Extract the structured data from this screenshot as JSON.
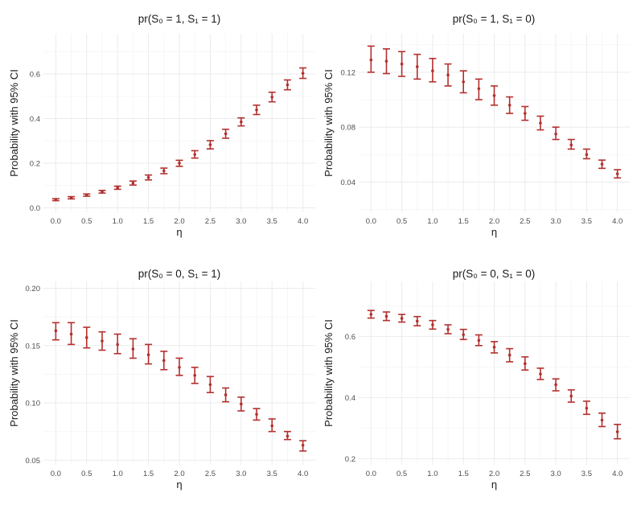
{
  "chart_data": [
    {
      "type": "scatter",
      "title": "pr(S₀ = 1, S₁ = 1)",
      "xlabel": "η",
      "ylabel": "Probability with 95% CI",
      "xlim": [
        -0.2,
        4.2
      ],
      "ylim": [
        -0.02,
        0.78
      ],
      "xticks": [
        0.0,
        0.5,
        1.0,
        1.5,
        2.0,
        2.5,
        3.0,
        3.5,
        4.0
      ],
      "xtick_labels": [
        "0.0",
        "0.5",
        "1.0",
        "1.5",
        "2.0",
        "2.5",
        "3.0",
        "3.5",
        "4.0"
      ],
      "yticks": [
        0.0,
        0.2,
        0.4,
        0.6
      ],
      "ytick_labels": [
        "0.0",
        "0.2",
        "0.4",
        "0.6"
      ],
      "x": [
        0.0,
        0.25,
        0.5,
        0.75,
        1.0,
        1.25,
        1.5,
        1.75,
        2.0,
        2.25,
        2.5,
        2.75,
        3.0,
        3.25,
        3.5,
        3.75,
        4.0
      ],
      "y": [
        0.036,
        0.045,
        0.057,
        0.072,
        0.09,
        0.111,
        0.136,
        0.166,
        0.2,
        0.239,
        0.283,
        0.332,
        0.385,
        0.439,
        0.496,
        0.551,
        0.603
      ],
      "lower": [
        0.032,
        0.04,
        0.052,
        0.066,
        0.083,
        0.102,
        0.125,
        0.153,
        0.186,
        0.223,
        0.264,
        0.312,
        0.367,
        0.418,
        0.475,
        0.529,
        0.58
      ],
      "upper": [
        0.041,
        0.05,
        0.062,
        0.078,
        0.097,
        0.12,
        0.147,
        0.178,
        0.213,
        0.256,
        0.301,
        0.352,
        0.403,
        0.46,
        0.518,
        0.573,
        0.627
      ]
    },
    {
      "type": "scatter",
      "title": "pr(S₀ = 1, S₁ = 0)",
      "xlabel": "η",
      "ylabel": "Probability with 95% CI",
      "xlim": [
        -0.2,
        4.2
      ],
      "ylim": [
        0.018,
        0.148
      ],
      "xticks": [
        0.0,
        0.5,
        1.0,
        1.5,
        2.0,
        2.5,
        3.0,
        3.5,
        4.0
      ],
      "xtick_labels": [
        "0.0",
        "0.5",
        "1.0",
        "1.5",
        "2.0",
        "2.5",
        "3.0",
        "3.5",
        "4.0"
      ],
      "yticks": [
        0.04,
        0.08,
        0.12
      ],
      "ytick_labels": [
        "0.04",
        "0.08",
        "0.12"
      ],
      "x": [
        0.0,
        0.25,
        0.5,
        0.75,
        1.0,
        1.25,
        1.5,
        1.75,
        2.0,
        2.25,
        2.5,
        2.75,
        3.0,
        3.25,
        3.5,
        3.75,
        4.0
      ],
      "y": [
        0.129,
        0.128,
        0.126,
        0.124,
        0.121,
        0.118,
        0.113,
        0.108,
        0.103,
        0.096,
        0.09,
        0.083,
        0.075,
        0.067,
        0.06,
        0.053,
        0.046
      ],
      "lower": [
        0.12,
        0.119,
        0.117,
        0.115,
        0.113,
        0.11,
        0.105,
        0.1,
        0.096,
        0.09,
        0.085,
        0.078,
        0.071,
        0.064,
        0.057,
        0.05,
        0.043
      ],
      "upper": [
        0.139,
        0.137,
        0.135,
        0.133,
        0.13,
        0.126,
        0.121,
        0.115,
        0.11,
        0.102,
        0.095,
        0.088,
        0.08,
        0.071,
        0.064,
        0.056,
        0.049
      ]
    },
    {
      "type": "scatter",
      "title": "pr(S₀ = 0, S₁ = 1)",
      "xlabel": "η",
      "ylabel": "Probability with 95% CI",
      "xlim": [
        -0.2,
        4.2
      ],
      "ylim": [
        0.046,
        0.206
      ],
      "xticks": [
        0.0,
        0.5,
        1.0,
        1.5,
        2.0,
        2.5,
        3.0,
        3.5,
        4.0
      ],
      "xtick_labels": [
        "0.0",
        "0.5",
        "1.0",
        "1.5",
        "2.0",
        "2.5",
        "3.0",
        "3.5",
        "4.0"
      ],
      "yticks": [
        0.05,
        0.1,
        0.15,
        0.2
      ],
      "ytick_labels": [
        "0.05",
        "0.10",
        "0.15",
        "0.20"
      ],
      "x": [
        0.0,
        0.25,
        0.5,
        0.75,
        1.0,
        1.25,
        1.5,
        1.75,
        2.0,
        2.25,
        2.5,
        2.75,
        3.0,
        3.25,
        3.5,
        3.75,
        4.0
      ],
      "y": [
        0.163,
        0.16,
        0.157,
        0.154,
        0.151,
        0.147,
        0.142,
        0.137,
        0.131,
        0.124,
        0.116,
        0.107,
        0.099,
        0.09,
        0.08,
        0.071,
        0.063
      ],
      "lower": [
        0.155,
        0.151,
        0.148,
        0.146,
        0.143,
        0.139,
        0.134,
        0.129,
        0.124,
        0.117,
        0.109,
        0.101,
        0.093,
        0.085,
        0.075,
        0.068,
        0.058
      ],
      "upper": [
        0.17,
        0.17,
        0.166,
        0.162,
        0.16,
        0.156,
        0.151,
        0.145,
        0.139,
        0.131,
        0.123,
        0.113,
        0.105,
        0.095,
        0.086,
        0.075,
        0.067
      ]
    },
    {
      "type": "scatter",
      "title": "pr(S₀ = 0, S₁ = 0)",
      "xlabel": "η",
      "ylabel": "Probability with 95% CI",
      "xlim": [
        -0.2,
        4.2
      ],
      "ylim": [
        0.18,
        0.78
      ],
      "xticks": [
        0.0,
        0.5,
        1.0,
        1.5,
        2.0,
        2.5,
        3.0,
        3.5,
        4.0
      ],
      "xtick_labels": [
        "0.0",
        "0.5",
        "1.0",
        "1.5",
        "2.0",
        "2.5",
        "3.0",
        "3.5",
        "4.0"
      ],
      "yticks": [
        0.2,
        0.4,
        0.6
      ],
      "ytick_labels": [
        "0.2",
        "0.4",
        "0.6"
      ],
      "x": [
        0.0,
        0.25,
        0.5,
        0.75,
        1.0,
        1.25,
        1.5,
        1.75,
        2.0,
        2.25,
        2.5,
        2.75,
        3.0,
        3.25,
        3.5,
        3.75,
        4.0
      ],
      "y": [
        0.672,
        0.666,
        0.659,
        0.65,
        0.638,
        0.623,
        0.606,
        0.587,
        0.565,
        0.539,
        0.511,
        0.477,
        0.442,
        0.405,
        0.365,
        0.326,
        0.288
      ],
      "lower": [
        0.66,
        0.652,
        0.647,
        0.635,
        0.624,
        0.609,
        0.59,
        0.57,
        0.546,
        0.517,
        0.49,
        0.459,
        0.422,
        0.385,
        0.345,
        0.305,
        0.265
      ],
      "upper": [
        0.685,
        0.68,
        0.672,
        0.665,
        0.652,
        0.638,
        0.623,
        0.605,
        0.583,
        0.56,
        0.533,
        0.496,
        0.461,
        0.425,
        0.388,
        0.349,
        0.312
      ]
    }
  ],
  "colors": {
    "point": "#b2302e",
    "grid_major": "#ebebeb",
    "grid_minor": "#f5f5f5",
    "text": "#1a1a1a",
    "tick_text": "#4d4d4d"
  }
}
